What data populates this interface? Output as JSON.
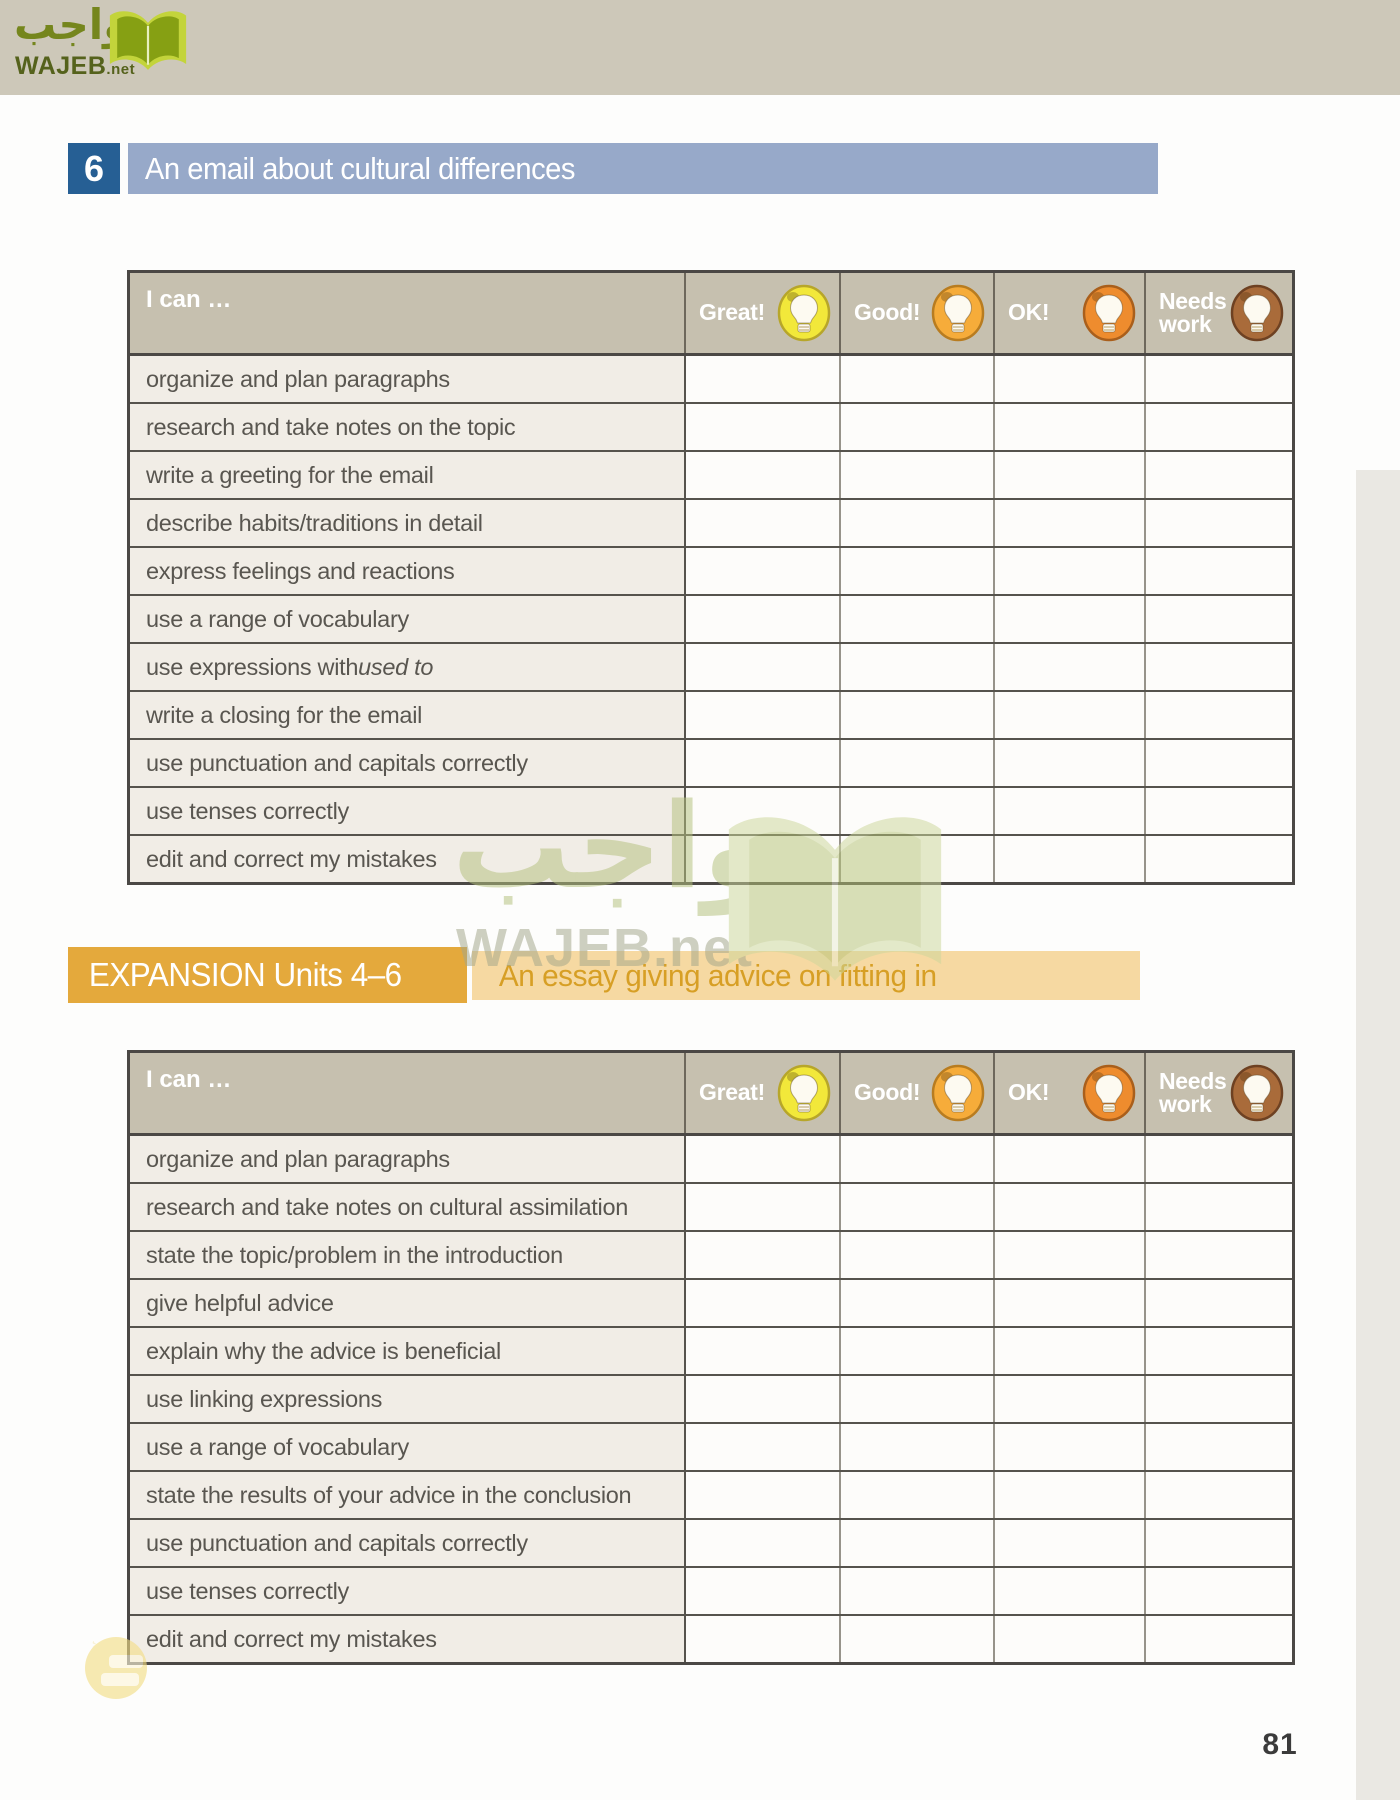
{
  "topbar": {
    "logo_arabic": "واجب",
    "logo_latin": "WAJEB",
    "logo_tld": ".net"
  },
  "section": {
    "number": "6",
    "title": "An email about cultural differences"
  },
  "levels": {
    "i_can_label": "I can …",
    "items": [
      {
        "name": "great",
        "label": "Great!",
        "color": "#f2e83a",
        "edge": "#b7a62a"
      },
      {
        "name": "good",
        "label": "Good!",
        "color": "#f6ac3a",
        "edge": "#b87c20"
      },
      {
        "name": "ok",
        "label": "OK!",
        "color": "#ee8c2e",
        "edge": "#a95f1c"
      },
      {
        "name": "needs-work",
        "label": "Needs work",
        "color": "#a96b3a",
        "edge": "#6e4122"
      }
    ]
  },
  "table1": {
    "rows": [
      {
        "text": "organize and plan paragraphs",
        "italic": ""
      },
      {
        "text": "research and take notes on the topic",
        "italic": ""
      },
      {
        "text": "write a greeting for the email",
        "italic": ""
      },
      {
        "text": "describe habits/traditions in detail",
        "italic": ""
      },
      {
        "text": "express feelings and reactions",
        "italic": ""
      },
      {
        "text": "use a range of vocabulary",
        "italic": ""
      },
      {
        "text": "use expressions with ",
        "italic": "used to"
      },
      {
        "text": "write a closing for the email",
        "italic": ""
      },
      {
        "text": "use punctuation and capitals correctly",
        "italic": ""
      },
      {
        "text": "use tenses correctly",
        "italic": ""
      },
      {
        "text": "edit and correct my mistakes",
        "italic": ""
      }
    ]
  },
  "expansion": {
    "badge": "EXPANSION Units  4–6",
    "title": "An essay giving advice on fitting in"
  },
  "table2": {
    "rows": [
      {
        "text": "organize and plan paragraphs",
        "italic": ""
      },
      {
        "text": "research and take notes on cultural assimilation",
        "italic": ""
      },
      {
        "text": "state the topic/problem in the introduction",
        "italic": ""
      },
      {
        "text": "give helpful advice",
        "italic": ""
      },
      {
        "text": "explain why the advice is beneficial",
        "italic": ""
      },
      {
        "text": "use linking expressions",
        "italic": ""
      },
      {
        "text": "use a range of vocabulary",
        "italic": ""
      },
      {
        "text": "state the results of your advice in the conclusion",
        "italic": ""
      },
      {
        "text": "use punctuation and capitals correctly",
        "italic": ""
      },
      {
        "text": "use tenses correctly",
        "italic": ""
      },
      {
        "text": "edit and correct my mistakes",
        "italic": ""
      }
    ]
  },
  "watermark": {
    "arabic": "واجب",
    "latin": "WAJEB.net"
  },
  "page_number": "81"
}
